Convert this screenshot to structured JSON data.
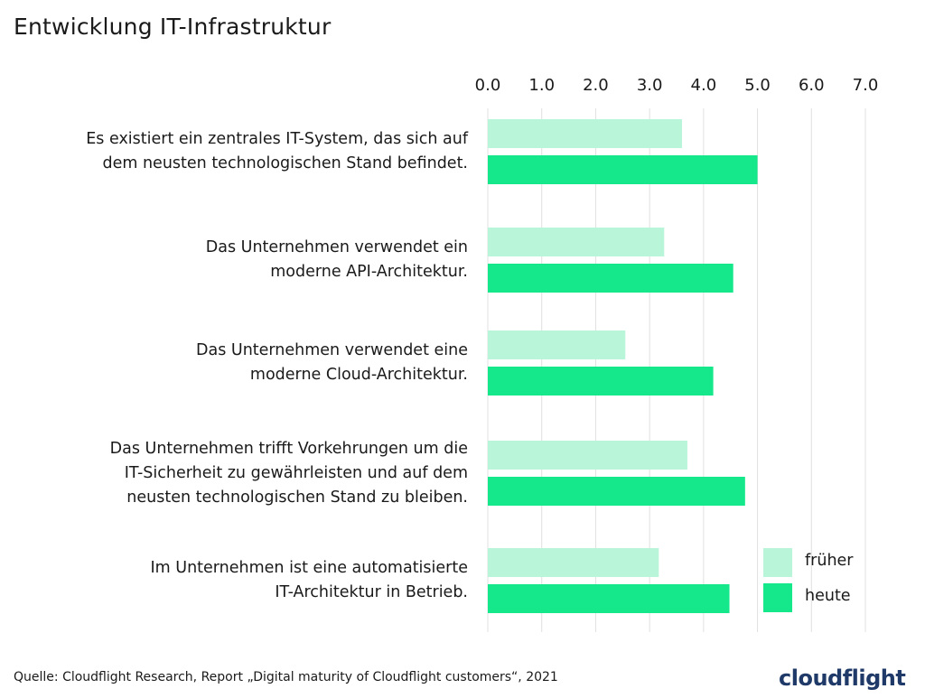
{
  "title": "Entwicklung IT-Infrastruktur",
  "source": "Quelle: Cloudflight Research, Report „Digital maturity of Cloudflight customers“, 2021",
  "logo_text": "cloudflight",
  "colors": {
    "frueher": "#b8f5d9",
    "heute": "#14e88a",
    "grid": "#e0e0e0",
    "logo": "#1f3a68"
  },
  "chart_data": {
    "type": "bar",
    "orientation": "horizontal",
    "xlim": [
      0,
      7
    ],
    "ticks": [
      "0.0",
      "1.0",
      "2.0",
      "3.0",
      "4.0",
      "5.0",
      "6.0",
      "7.0"
    ],
    "tick_values": [
      0,
      1,
      2,
      3,
      4,
      5,
      6,
      7
    ],
    "categories": [
      [
        "Es existiert ein zentrales IT-System, das sich auf",
        "dem neusten technologischen Stand befindet."
      ],
      [
        "Das Unternehmen verwendet ein",
        "moderne API-Architektur."
      ],
      [
        "Das Unternehmen verwendet eine",
        "moderne Cloud-Architektur."
      ],
      [
        "Das Unternehmen trifft Vorkehrungen um die",
        "IT-Sicherheit zu gewährleisten und auf dem",
        "neusten technologischen Stand zu bleiben."
      ],
      [
        "Im Unternehmen ist eine automatisierte",
        "IT-Architektur in Betrieb."
      ]
    ],
    "series": [
      {
        "name": "früher",
        "values": [
          3.6,
          3.27,
          2.55,
          3.7,
          3.17
        ]
      },
      {
        "name": "heute",
        "values": [
          5.0,
          4.55,
          4.18,
          4.77,
          4.48
        ]
      }
    ],
    "legend": [
      "früher",
      "heute"
    ],
    "legend_position": "bottom-right"
  }
}
